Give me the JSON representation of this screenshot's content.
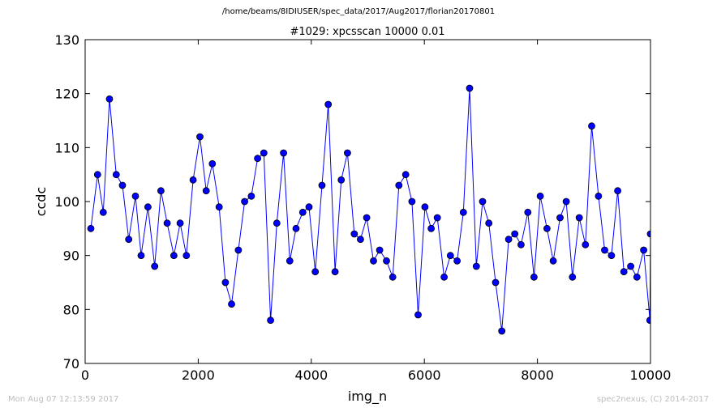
{
  "page_title": "/home/beams/8IDIUSER/spec_data/2017/Aug2017/florian20170801",
  "footer": {
    "timestamp": "Mon Aug 07 12:13:59 2017",
    "credit": "spec2nexus, (C) 2014-2017"
  },
  "chart_data": {
    "type": "line",
    "title": "#1029: xpcsscan 10000 0.01",
    "xlabel": "img_n",
    "ylabel": "ccdc",
    "xlim": [
      0,
      10000
    ],
    "ylim": [
      70,
      130
    ],
    "xticks": [
      "0",
      "2000",
      "4000",
      "6000",
      "8000",
      "10000"
    ],
    "yticks": [
      "70",
      "80",
      "90",
      "100",
      "110",
      "120",
      "130"
    ],
    "grid": false,
    "marker": "circle",
    "color": "#0000ff",
    "x": [
      100,
      220,
      320,
      430,
      550,
      660,
      770,
      890,
      990,
      1110,
      1230,
      1340,
      1450,
      1570,
      1680,
      1790,
      1910,
      2030,
      2140,
      2250,
      2370,
      2480,
      2590,
      2710,
      2820,
      2940,
      3050,
      3160,
      3280,
      3390,
      3510,
      3620,
      3730,
      3850,
      3960,
      4070,
      4190,
      4300,
      4420,
      4530,
      4640,
      4760,
      4870,
      4980,
      5100,
      5210,
      5330,
      5440,
      5550,
      5670,
      5780,
      5890,
      6010,
      6120,
      6230,
      6350,
      6460,
      6580,
      6690,
      6800,
      6920,
      7030,
      7140,
      7260,
      7370,
      7490,
      7600,
      7710,
      7830,
      7940,
      8050,
      8170,
      8280,
      8400,
      8510,
      8620,
      8740,
      8850,
      8960,
      9080,
      9190,
      9310,
      9420,
      9530,
      9650,
      9760,
      9880,
      9990,
      10000
    ],
    "y": [
      95,
      105,
      98,
      119,
      105,
      103,
      93,
      101,
      90,
      99,
      88,
      102,
      96,
      90,
      96,
      90,
      104,
      112,
      102,
      107,
      99,
      85,
      81,
      91,
      100,
      101,
      108,
      109,
      78,
      96,
      109,
      89,
      95,
      98,
      99,
      87,
      103,
      118,
      87,
      104,
      109,
      94,
      93,
      97,
      89,
      91,
      89,
      86,
      103,
      105,
      100,
      79,
      99,
      95,
      97,
      86,
      90,
      89,
      98,
      121,
      88,
      100,
      96,
      85,
      76,
      93,
      94,
      92,
      98,
      86,
      101,
      95,
      89,
      97,
      100,
      86,
      97,
      92,
      114,
      101,
      91,
      90,
      102,
      87,
      88,
      86,
      91,
      78,
      94
    ]
  }
}
